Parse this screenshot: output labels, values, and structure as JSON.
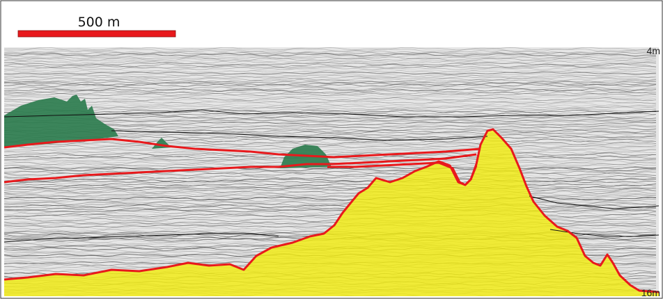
{
  "scale_bar": {
    "label": "500 m",
    "color": "#e8191c"
  },
  "depth_markers": {
    "top": "4m",
    "bottom": "16m"
  },
  "colors": {
    "horizon_red": "#e8191c",
    "horizon_black": "#111111",
    "green_body": "#2e7d4f",
    "yellow_body": "#f2ec10",
    "seismic_light": "#d8d8d8",
    "seismic_dark": "#5a5a5a"
  }
}
